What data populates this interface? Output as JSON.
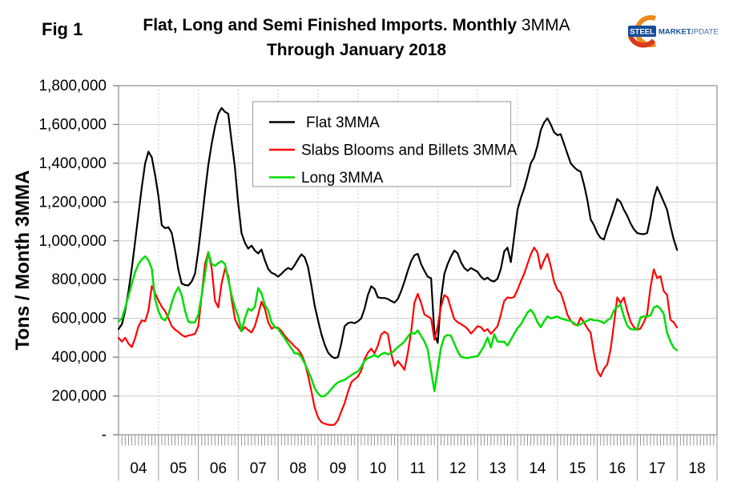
{
  "figure_label": "Fig 1",
  "title": {
    "bold": "Flat, Long and Semi Finished Imports. Monthly",
    "regular": "3MMA",
    "line2": "Through January 2018"
  },
  "logo": {
    "steel": "STEEL",
    "market": "MARKET",
    "update": "UPDATE"
  },
  "colors": {
    "flat": "#000000",
    "slabs": "#FF0000",
    "long": "#00DC00",
    "grid": "#C9C9C9",
    "frame": "#969696",
    "logo_blue": "#174E9B",
    "logo_light_blue": "#3C6CB0",
    "logo_orange": "#F08718",
    "logo_red": "#D63A1F"
  },
  "chart_data": {
    "type": "line",
    "title": "Flat, Long and Semi Finished Imports. Monthly 3MMA Through January 2018",
    "ylabel": "Tons / Month 3MMA",
    "xlabel": "",
    "ylim": [
      0,
      1800000
    ],
    "y_tick_interval": 200000,
    "y_tick_labels": [
      "-",
      "200,000",
      "400,000",
      "600,000",
      "800,000",
      "1,000,000",
      "1,200,000",
      "1,400,000",
      "1,600,000",
      "1,800,000"
    ],
    "x_tick_labels": [
      "04",
      "05",
      "06",
      "07",
      "08",
      "09",
      "10",
      "11",
      "12",
      "13",
      "14",
      "15",
      "16",
      "17",
      "18"
    ],
    "x_unit": "month",
    "x_start": "2004-01",
    "x_end": "2018-01",
    "grid": {
      "horizontal": "solid",
      "vertical": "dotted-yearly",
      "minor_x_ticks": "monthly"
    },
    "legend_position": "top-center-inside",
    "series": [
      {
        "name": "Flat 3MMA",
        "color": "#000000",
        "values_tons": [
          545000,
          570000,
          640000,
          740000,
          860000,
          1000000,
          1140000,
          1280000,
          1400000,
          1460000,
          1430000,
          1340000,
          1230000,
          1081000,
          1065000,
          1070000,
          1040000,
          950000,
          850000,
          780000,
          772000,
          770000,
          790000,
          830000,
          950000,
          1100000,
          1250000,
          1390000,
          1500000,
          1590000,
          1655000,
          1685000,
          1665000,
          1655000,
          1513000,
          1377000,
          1190000,
          1040000,
          990000,
          960000,
          975000,
          950000,
          935000,
          955000,
          900000,
          855000,
          835000,
          828000,
          815000,
          830000,
          848000,
          860000,
          852000,
          875000,
          905000,
          930000,
          915000,
          865000,
          770000,
          665000,
          590000,
          520000,
          465000,
          425000,
          405000,
          395000,
          400000,
          470000,
          560000,
          575000,
          580000,
          575000,
          585000,
          600000,
          650000,
          720000,
          766000,
          752000,
          709000,
          705000,
          705000,
          700000,
          690000,
          681000,
          700000,
          740000,
          790000,
          845000,
          895000,
          925000,
          933000,
          880000,
          845000,
          815000,
          807000,
          520000,
          474000,
          700000,
          830000,
          880000,
          920000,
          950000,
          935000,
          890000,
          860000,
          845000,
          860000,
          850000,
          840000,
          815000,
          800000,
          810000,
          795000,
          790000,
          805000,
          855000,
          945000,
          965000,
          890000,
          1020000,
          1160000,
          1220000,
          1270000,
          1330000,
          1400000,
          1430000,
          1490000,
          1570000,
          1610000,
          1632000,
          1600000,
          1560000,
          1545000,
          1550000,
          1500000,
          1450000,
          1400000,
          1380000,
          1365000,
          1356000,
          1290000,
          1213000,
          1110000,
          1081000,
          1040000,
          1015000,
          1007000,
          1060000,
          1110000,
          1160000,
          1216000,
          1200000,
          1160000,
          1130000,
          1090000,
          1060000,
          1040000,
          1036000,
          1034000,
          1040000,
          1120000,
          1220000,
          1278000,
          1240000,
          1200000,
          1160000,
          1077000,
          1007000,
          953000
        ]
      },
      {
        "name": "Slabs Blooms and Billets 3MMA",
        "color": "#FF0000",
        "values_tons": [
          500000,
          480000,
          500000,
          470000,
          452000,
          500000,
          560000,
          590000,
          585000,
          640000,
          767000,
          730000,
          692000,
          660000,
          637000,
          600000,
          560000,
          542000,
          530000,
          515000,
          505000,
          512000,
          515000,
          520000,
          560000,
          720000,
          880000,
          941000,
          860000,
          690000,
          657000,
          780000,
          855000,
          820000,
          700000,
          596000,
          560000,
          534000,
          555000,
          540000,
          527000,
          560000,
          620000,
          686000,
          650000,
          580000,
          547000,
          555000,
          552000,
          535000,
          510000,
          490000,
          473000,
          455000,
          440000,
          415000,
          375000,
          305000,
          225000,
          140000,
          90000,
          65000,
          57000,
          52000,
          50000,
          52000,
          75000,
          120000,
          163000,
          220000,
          270000,
          286000,
          300000,
          330000,
          390000,
          423000,
          444000,
          420000,
          460000,
          517000,
          531000,
          520000,
          420000,
          355000,
          380000,
          360000,
          335000,
          420000,
          530000,
          680000,
          727000,
          680000,
          620000,
          610000,
          600000,
          490000,
          560000,
          660000,
          720000,
          708000,
          650000,
          596000,
          580000,
          571000,
          560000,
          545000,
          522000,
          540000,
          560000,
          555000,
          534000,
          545000,
          520000,
          540000,
          560000,
          620000,
          690000,
          708000,
          705000,
          710000,
          748000,
          790000,
          830000,
          880000,
          930000,
          965000,
          940000,
          855000,
          900000,
          933000,
          870000,
          790000,
          748000,
          732000,
          680000,
          620000,
          588000,
          570000,
          563000,
          604000,
          580000,
          550000,
          526000,
          420000,
          330000,
          301000,
          340000,
          362000,
          440000,
          568000,
          708000,
          680000,
          708000,
          640000,
          583000,
          555000,
          542000,
          548000,
          580000,
          620000,
          760000,
          853000,
          808000,
          818000,
          740000,
          722000,
          593000,
          580000,
          553000
        ]
      },
      {
        "name": "Long 3MMA",
        "color": "#00DC00",
        "values_tons": [
          585000,
          600000,
          655000,
          715000,
          780000,
          840000,
          880000,
          905000,
          920000,
          900000,
          855000,
          700000,
          637000,
          600000,
          590000,
          620000,
          680000,
          730000,
          760000,
          720000,
          640000,
          583000,
          578000,
          580000,
          620000,
          720000,
          830000,
          942000,
          880000,
          871000,
          885000,
          896000,
          880000,
          800000,
          720000,
          657000,
          610000,
          534000,
          600000,
          650000,
          640000,
          660000,
          756000,
          730000,
          670000,
          640000,
          580000,
          555000,
          547000,
          520000,
          498000,
          470000,
          445000,
          420000,
          419000,
          400000,
          368000,
          330000,
          290000,
          240000,
          212000,
          197000,
          200000,
          215000,
          235000,
          255000,
          270000,
          278000,
          283000,
          295000,
          307000,
          318000,
          327000,
          350000,
          381000,
          395000,
          402000,
          412000,
          400000,
          415000,
          423000,
          415000,
          420000,
          435000,
          452000,
          465000,
          481000,
          505000,
          527000,
          520000,
          538000,
          510000,
          481000,
          440000,
          330000,
          225000,
          340000,
          450000,
          505000,
          515000,
          510000,
          470000,
          430000,
          402000,
          398000,
          395000,
          400000,
          402000,
          405000,
          430000,
          460000,
          501000,
          450000,
          518000,
          480000,
          480000,
          480000,
          460000,
          490000,
          520000,
          550000,
          568000,
          600000,
          630000,
          645000,
          620000,
          580000,
          555000,
          585000,
          610000,
          600000,
          605000,
          610000,
          600000,
          595000,
          590000,
          588000,
          575000,
          563000,
          570000,
          580000,
          588000,
          596000,
          590000,
          590000,
          585000,
          575000,
          590000,
          600000,
          640000,
          660000,
          671000,
          610000,
          563000,
          545000,
          542000,
          545000,
          605000,
          610000,
          610000,
          615000,
          655000,
          665000,
          650000,
          622000,
          526000,
          481000,
          448000,
          436000
        ]
      }
    ]
  }
}
